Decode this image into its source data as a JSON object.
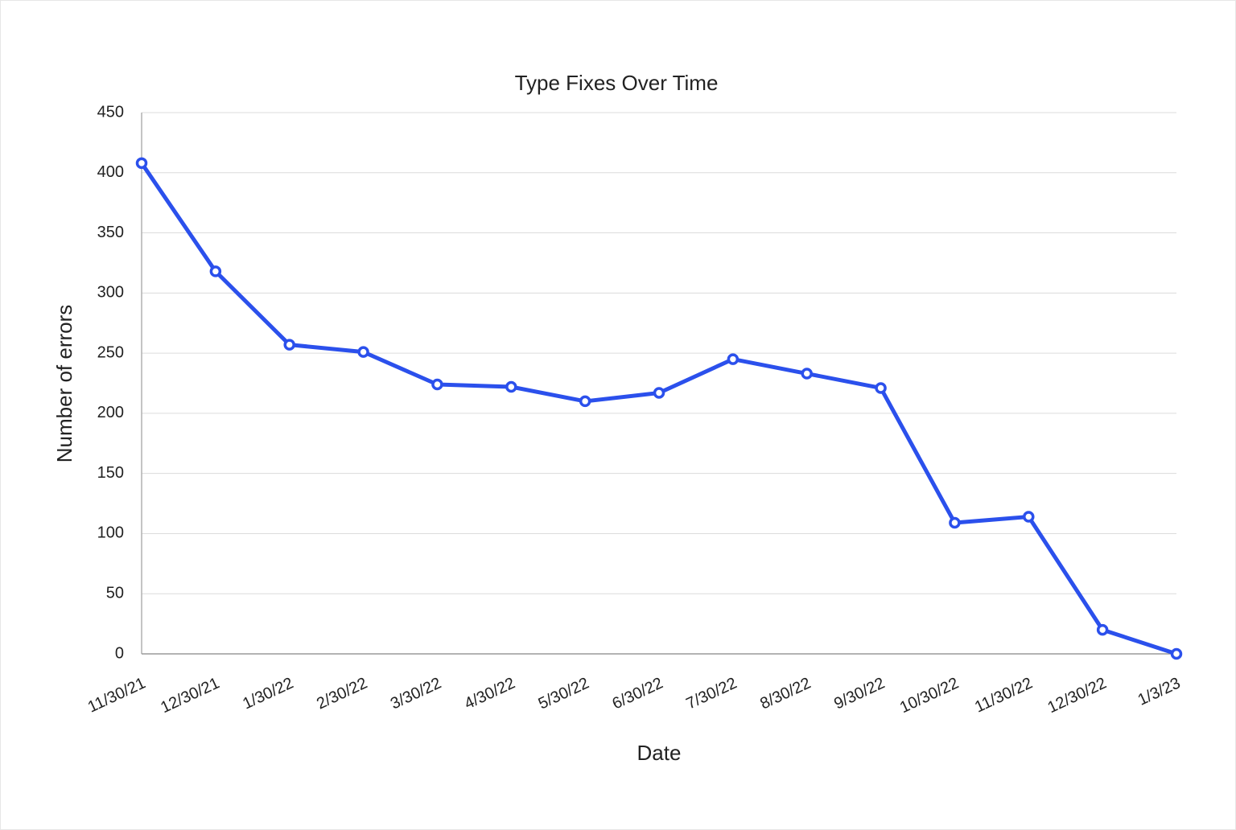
{
  "chart_data": {
    "type": "line",
    "title": "Type Fixes Over Time",
    "x_label": "Date",
    "y_label": "Number of errors",
    "categories": [
      "11/30/21",
      "12/30/21",
      "1/30/22",
      "2/30/22",
      "3/30/22",
      "4/30/22",
      "5/30/22",
      "6/30/22",
      "7/30/22",
      "8/30/22",
      "9/30/22",
      "10/30/22",
      "11/30/22",
      "12/30/22",
      "1/3/23"
    ],
    "values": [
      408,
      318,
      257,
      251,
      224,
      222,
      210,
      217,
      245,
      233,
      221,
      109,
      114,
      20,
      0
    ],
    "color": "#2b50ec",
    "ylim": [
      0,
      450
    ],
    "yticks": [
      0,
      50,
      100,
      150,
      200,
      250,
      300,
      350,
      400,
      450
    ],
    "grid": true
  }
}
